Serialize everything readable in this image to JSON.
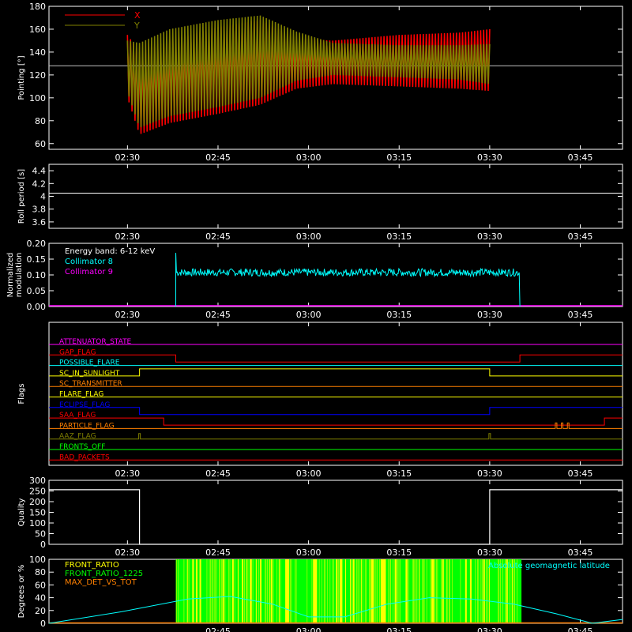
{
  "chart_data": [
    {
      "id": "pointing",
      "type": "line",
      "ylabel": "Pointing [°]",
      "yticks": [
        60,
        80,
        100,
        120,
        140,
        160,
        180
      ],
      "ylim": [
        55,
        180
      ],
      "xticks": [
        "02:30",
        "02:45",
        "03:00",
        "03:15",
        "03:30",
        "03:45"
      ],
      "baseline": 128,
      "series": [
        {
          "name": "X",
          "color": "#ff0000",
          "x": [
            "02:30",
            "02:32",
            "02:37",
            "02:45",
            "02:52",
            "02:58",
            "03:04",
            "03:15",
            "03:25",
            "03:30"
          ],
          "upper": [
            155,
            140,
            150,
            162,
            168,
            152,
            150,
            155,
            157,
            160
          ],
          "lower": [
            100,
            68,
            78,
            86,
            94,
            108,
            112,
            110,
            108,
            106
          ]
        },
        {
          "name": "Y",
          "color": "#808000",
          "x": [
            "02:30",
            "02:32",
            "02:37",
            "02:45",
            "02:52",
            "02:58",
            "03:04",
            "03:15",
            "03:25",
            "03:30"
          ],
          "upper": [
            150,
            148,
            160,
            168,
            172,
            158,
            148,
            146,
            146,
            147
          ],
          "lower": [
            105,
            74,
            84,
            92,
            100,
            115,
            120,
            118,
            116,
            112
          ]
        }
      ]
    },
    {
      "id": "roll",
      "type": "line",
      "ylabel": "Roll period [s]",
      "yticks": [
        3.6,
        3.8,
        4.0,
        4.2,
        4.4
      ],
      "ylim": [
        3.5,
        4.5
      ],
      "xticks": [
        "02:30",
        "02:45",
        "03:00",
        "03:15",
        "03:30",
        "03:45"
      ],
      "series": [
        {
          "name": "",
          "color": "#ffffff",
          "x": [
            "02:17",
            "03:52"
          ],
          "values": [
            4.05,
            4.05
          ]
        }
      ]
    },
    {
      "id": "modulation",
      "type": "line",
      "ylabel": "Normalized modulation",
      "yticks": [
        "0.00",
        "0.05",
        "0.10",
        "0.15",
        "0.20"
      ],
      "ylim": [
        0,
        0.2
      ],
      "xticks": [
        "02:30",
        "02:45",
        "03:00",
        "03:15",
        "03:30",
        "03:45"
      ],
      "legend_title": "Energy band: 6-12 keV",
      "series": [
        {
          "name": "Collimator 8",
          "color": "#00ffff",
          "x": [
            "02:38",
            "03:35"
          ],
          "mean": 0.108,
          "spread": 0.012,
          "spike": 0.17
        },
        {
          "name": "Collimator 9",
          "color": "#ff00ff",
          "x": [
            "02:17",
            "03:52"
          ],
          "values": [
            0,
            0
          ]
        }
      ]
    },
    {
      "id": "flags",
      "type": "line",
      "ylabel": "Flags",
      "xticks": [
        "02:30",
        "02:45",
        "03:00",
        "03:15",
        "03:30",
        "03:45"
      ],
      "flags": [
        {
          "name": "ATTENUATOR_STATE",
          "color": "#ff00ff",
          "steps": []
        },
        {
          "name": "GAP_FLAG",
          "color": "#ff0000",
          "steps": [
            [
              "02:38",
              "03:35",
              -1
            ]
          ]
        },
        {
          "name": "POSSIBLE_FLARE",
          "color": "#00ffff",
          "steps": []
        },
        {
          "name": "SC_IN_SUNLIGHT",
          "color": "#ffff00",
          "steps": [
            [
              "02:32",
              "03:30",
              1
            ]
          ]
        },
        {
          "name": "SC_TRANSMITTER",
          "color": "#ff8000",
          "steps": []
        },
        {
          "name": "FLARE_FLAG",
          "color": "#ffff00",
          "steps": []
        },
        {
          "name": "ECLIPSE_FLAG",
          "color": "#0000ff",
          "steps": [
            [
              "02:32",
              "03:30",
              -1
            ]
          ]
        },
        {
          "name": "SAA_FLAG",
          "color": "#ff0000",
          "steps": [
            [
              "02:36",
              "03:49",
              -1
            ]
          ]
        },
        {
          "name": "PARTICLE_FLAG",
          "color": "#ff8000",
          "pulses": [
            "03:41",
            "03:42",
            "03:43"
          ]
        },
        {
          "name": "AAZ_FLAG",
          "color": "#808000",
          "pulses": [
            "02:32",
            "03:30"
          ]
        },
        {
          "name": "FRONTS_OFF",
          "color": "#00ff00",
          "steps": []
        },
        {
          "name": "BAD_PACKETS",
          "color": "#ff0000",
          "steps": []
        }
      ]
    },
    {
      "id": "quality",
      "type": "line",
      "ylabel": "Quality",
      "yticks": [
        0,
        50,
        100,
        150,
        200,
        250,
        300
      ],
      "ylim": [
        0,
        300
      ],
      "xticks": [
        "02:30",
        "02:45",
        "03:00",
        "03:15",
        "03:30",
        "03:45"
      ],
      "series": [
        {
          "name": "",
          "color": "#ffffff",
          "x": [
            "02:17",
            "02:32",
            "02:32",
            "03:30",
            "03:30",
            "03:52"
          ],
          "values": [
            256,
            256,
            0,
            0,
            256,
            256
          ]
        }
      ]
    },
    {
      "id": "ratio",
      "type": "line",
      "ylabel": "Degrees or %",
      "yticks": [
        0,
        20,
        40,
        60,
        80,
        100
      ],
      "ylim": [
        0,
        100
      ],
      "xticks": [
        "02:45",
        "03:00",
        "03:15",
        "03:30",
        "03:45"
      ],
      "series": [
        {
          "name": "FRONT_RATIO",
          "color": "#ffff00",
          "x": [
            "02:38",
            "03:35"
          ],
          "values": [
            100,
            100
          ]
        },
        {
          "name": "FRONT_RATIO_1225",
          "color": "#00ff00",
          "x": [
            "02:38",
            "03:35"
          ],
          "values": [
            0,
            100
          ]
        },
        {
          "name": "MAX_DET_VS_TOT",
          "color": "#ff8000",
          "x": [
            "02:17",
            "03:52"
          ],
          "values": [
            0,
            0
          ]
        },
        {
          "name": "Absolute geomagnetic latitude",
          "color": "#00ffff",
          "x": [
            "02:17",
            "02:29",
            "02:40",
            "02:47",
            "02:54",
            "03:00",
            "03:06",
            "03:13",
            "03:20",
            "03:27",
            "03:34",
            "03:41",
            "03:47",
            "03:52"
          ],
          "values": [
            0,
            18,
            38,
            42,
            30,
            10,
            10,
            30,
            40,
            38,
            30,
            15,
            0,
            6
          ]
        }
      ]
    }
  ]
}
